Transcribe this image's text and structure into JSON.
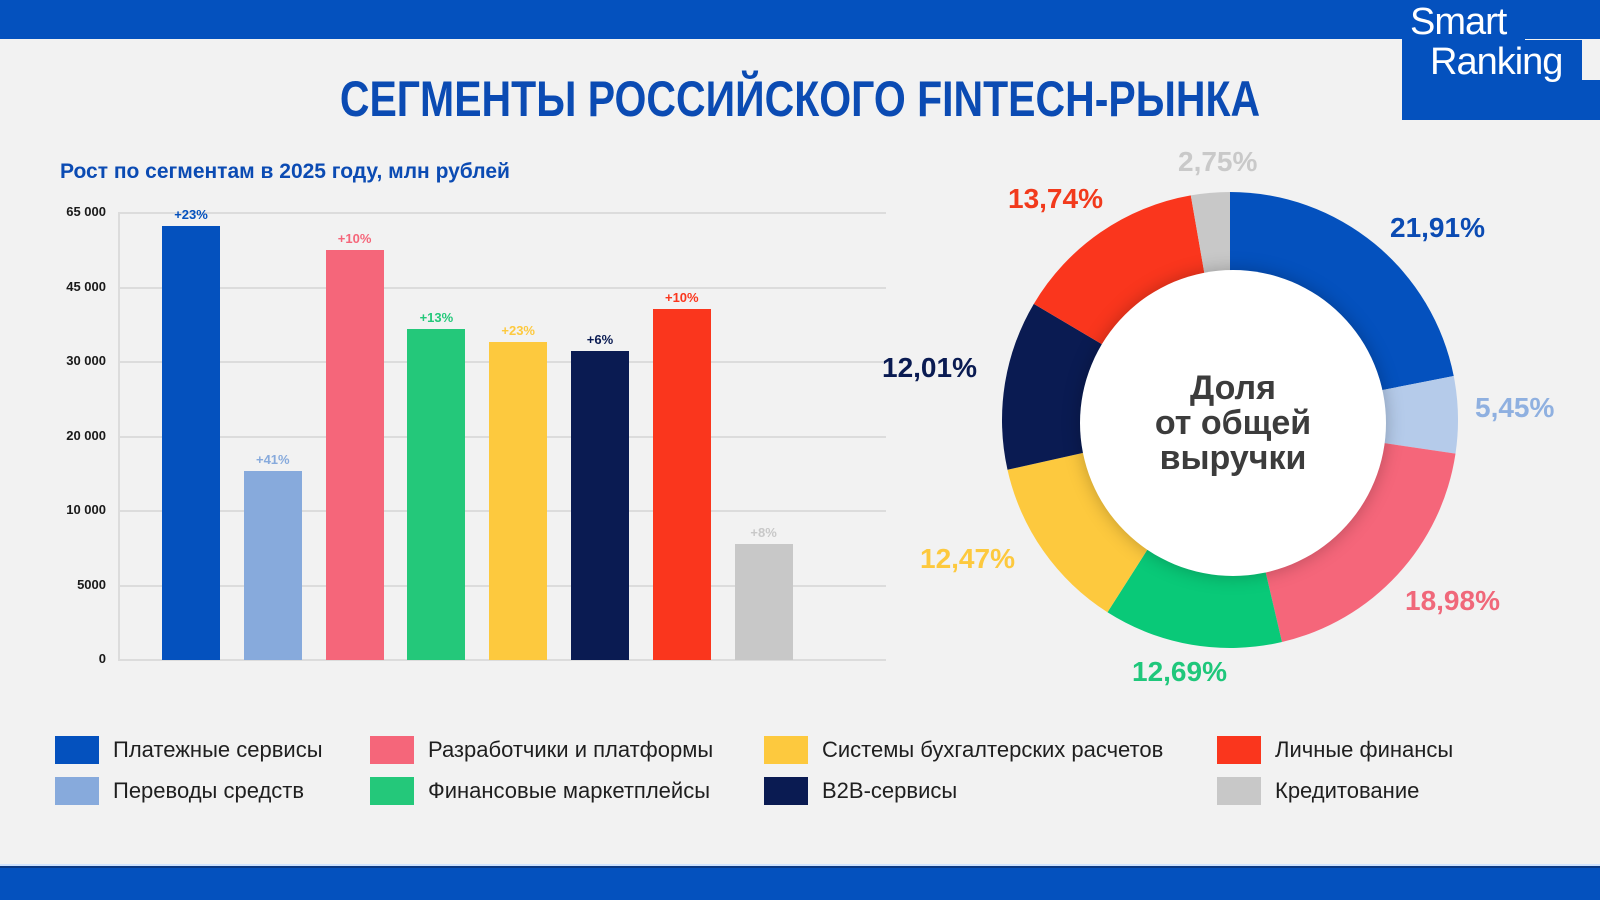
{
  "header": {
    "title": "СЕГМЕНТЫ РОССИЙСКОГО FINTECH-РЫНКА",
    "logo_line1": "Smart",
    "logo_line2": "Ranking"
  },
  "colors": {
    "brand_blue": "#0451be",
    "payments": "#0451be",
    "transfers": "#87aadc",
    "developers": "#f5667a",
    "marketplaces": "#24c87a",
    "accounting": "#fdc93e",
    "b2b": "#0a1b52",
    "personal_finance": "#fa361d",
    "lending": "#c8c8c8"
  },
  "bar_section": {
    "subtitle": "Рост по сегментам в 2025 году, млн рублей",
    "yticks": [
      "65 000",
      "45 000",
      "30 000",
      "20 000",
      "10 000",
      "5000",
      "0"
    ]
  },
  "donut_section": {
    "center_line1": "Доля",
    "center_line2": "от общей",
    "center_line3": "выручки"
  },
  "chart_data": [
    {
      "type": "bar",
      "title": "Рост по сегментам в 2025 году, млн рублей",
      "xlabel": "",
      "ylabel": "млн рублей",
      "yticks": [
        0,
        5000,
        10000,
        20000,
        30000,
        45000,
        65000
      ],
      "ylim": [
        0,
        65000
      ],
      "axis_note": "non-linear axis: ticks evenly spaced",
      "grid": true,
      "categories": [
        "Платежные сервисы",
        "Переводы средств",
        "Разработчики и платформы",
        "Финансовые маркетплейсы",
        "Системы бухгалтерских расчетов",
        "B2B-сервисы",
        "Личные финансы",
        "Кредитование"
      ],
      "values": [
        61300,
        15300,
        54900,
        36500,
        33900,
        32000,
        40500,
        7700
      ],
      "growth_labels": [
        "+23%",
        "+41%",
        "+10%",
        "+13%",
        "+23%",
        "+6%",
        "+10%",
        "+8%"
      ],
      "colors": [
        "#0451be",
        "#87aadc",
        "#f5667a",
        "#24c87a",
        "#fdc93e",
        "#0a1b52",
        "#fa361d",
        "#c8c8c8"
      ]
    },
    {
      "type": "pie",
      "subtype": "donut",
      "title": "Доля от общей выручки",
      "categories": [
        "Платежные сервисы",
        "Переводы средств",
        "Разработчики и платформы",
        "Финансовые маркетплейсы",
        "Системы бухгалтерских расчетов",
        "B2B-сервисы",
        "Личные финансы",
        "Кредитование"
      ],
      "values": [
        21.91,
        5.45,
        18.98,
        12.69,
        12.47,
        12.01,
        13.74,
        2.75
      ],
      "labels": [
        "21,91%",
        "5,45%",
        "18,98%",
        "12,69%",
        "12,47%",
        "12,01%",
        "13,74%",
        "2,75%"
      ],
      "colors": [
        "#0451be",
        "#b5cbea",
        "#f5667a",
        "#09c978",
        "#fdc93e",
        "#0a1b52",
        "#fa361d",
        "#c8c8c8"
      ]
    }
  ],
  "legend": [
    {
      "label": "Платежные сервисы",
      "color": "#0451be"
    },
    {
      "label": "Переводы средств",
      "color": "#87aadc"
    },
    {
      "label": "Разработчики и платформы",
      "color": "#f5667a"
    },
    {
      "label": "Финансовые маркетплейсы",
      "color": "#24c87a"
    },
    {
      "label": "Системы бухгалтерских расчетов",
      "color": "#fdc93e"
    },
    {
      "label": "B2B-сервисы",
      "color": "#0a1b52"
    },
    {
      "label": "Личные финансы",
      "color": "#fa361d"
    },
    {
      "label": "Кредитование",
      "color": "#c8c8c8"
    }
  ]
}
